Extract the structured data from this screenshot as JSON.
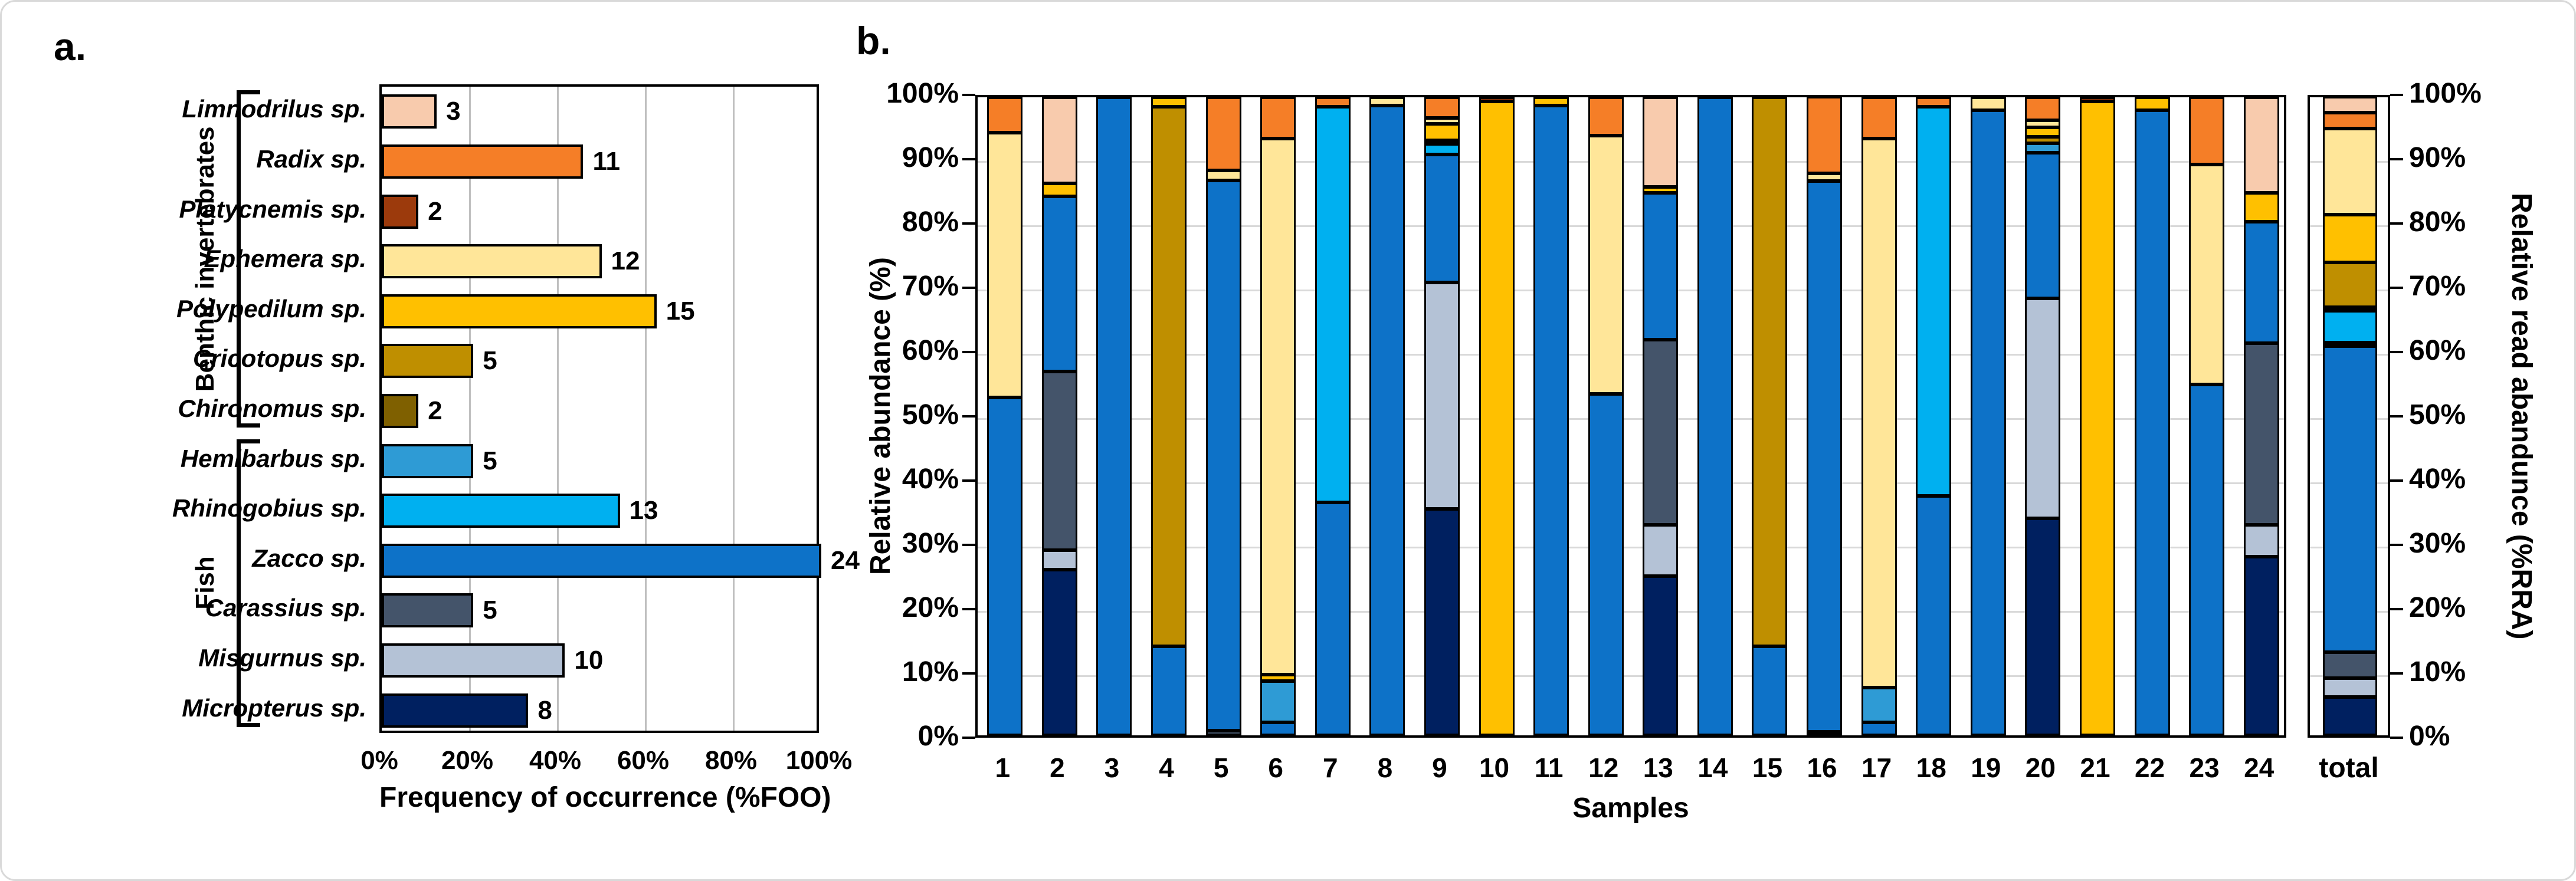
{
  "figure": {
    "panel_a_letter": "a.",
    "panel_b_letter": "b."
  },
  "species": [
    {
      "id": "limnodrilus",
      "label": "Limnodrilus sp.",
      "group": "Benthic invertebrates",
      "color": "#F8CBAD"
    },
    {
      "id": "radix",
      "label": "Radix sp.",
      "group": "Benthic invertebrates",
      "color": "#F57E27"
    },
    {
      "id": "platycnemis",
      "label": "Platycnemis sp.",
      "group": "Benthic invertebrates",
      "color": "#9C3A0C"
    },
    {
      "id": "ephemera",
      "label": "Ephemera sp.",
      "group": "Benthic invertebrates",
      "color": "#FFE699"
    },
    {
      "id": "polypedilum",
      "label": "Polypedilum sp.",
      "group": "Benthic invertebrates",
      "color": "#FFC000"
    },
    {
      "id": "cricotopus",
      "label": "Cricotopus sp.",
      "group": "Benthic invertebrates",
      "color": "#BF8F00"
    },
    {
      "id": "chironomus",
      "label": "Chironomus sp.",
      "group": "Benthic invertebrates",
      "color": "#7F6000"
    },
    {
      "id": "hemibarbus",
      "label": "Hemibarbus sp.",
      "group": "Fish",
      "color": "#2E9BD5"
    },
    {
      "id": "rhinogobius",
      "label": "Rhinogobius sp.",
      "group": "Fish",
      "color": "#00B0F0"
    },
    {
      "id": "zacco",
      "label": "Zacco sp.",
      "group": "Fish",
      "color": "#0D72C8"
    },
    {
      "id": "carassius",
      "label": "Carassius sp.",
      "group": "Fish",
      "color": "#44546A"
    },
    {
      "id": "misgurnus",
      "label": "Misgurnus sp.",
      "group": "Fish",
      "color": "#B4C2D6"
    },
    {
      "id": "micropterus",
      "label": "Micropterus sp.",
      "group": "Fish",
      "color": "#002060"
    }
  ],
  "chart_data": [
    {
      "type": "bar",
      "orientation": "horizontal",
      "xlabel": "Frequency of occurrence (%FOO)",
      "xticks": [
        "0%",
        "20%",
        "40%",
        "60%",
        "80%",
        "100%"
      ],
      "xlim": [
        0,
        100
      ],
      "scale_max_count": 24,
      "grid": true,
      "categories": [
        "Limnodrilus sp.",
        "Radix sp.",
        "Platycnemis sp.",
        "Ephemera sp.",
        "Polypedilum sp.",
        "Cricotopus sp.",
        "Chironomus sp.",
        "Hemibarbus sp.",
        "Rhinogobius sp.",
        "Zacco sp.",
        "Carassius sp.",
        "Misgurnus sp.",
        "Micropterus sp."
      ],
      "values": [
        3,
        11,
        2,
        12,
        15,
        5,
        2,
        5,
        13,
        24,
        5,
        10,
        8
      ],
      "colors": [
        "#F8CBAD",
        "#F57E27",
        "#9C3A0C",
        "#FFE699",
        "#FFC000",
        "#BF8F00",
        "#7F6000",
        "#2E9BD5",
        "#00B0F0",
        "#0D72C8",
        "#44546A",
        "#B4C2D6",
        "#002060"
      ],
      "groups": [
        {
          "label": "Benthic invertebrates",
          "from": 0,
          "to": 6
        },
        {
          "label": "Fish",
          "from": 7,
          "to": 12
        }
      ]
    },
    {
      "type": "stacked-bar",
      "xlabel": "Samples",
      "ylabel": "Relative abundance (%)",
      "ylabel_right": "Relative read abandunce (%RRA)",
      "total_label": "total",
      "ylim": [
        0,
        100
      ],
      "yticks": [
        "0%",
        "10%",
        "20%",
        "30%",
        "40%",
        "50%",
        "60%",
        "70%",
        "80%",
        "90%",
        "100%"
      ],
      "grid": true,
      "grid_color": "#d9d9d9",
      "stack_order": [
        "micropterus",
        "misgurnus",
        "carassius",
        "zacco",
        "hemibarbus",
        "rhinogobius",
        "chironomus",
        "cricotopus",
        "polypedilum",
        "ephemera",
        "platycnemis",
        "radix",
        "limnodrilus"
      ],
      "categories": [
        "1",
        "2",
        "3",
        "4",
        "5",
        "6",
        "7",
        "8",
        "9",
        "10",
        "11",
        "12",
        "13",
        "14",
        "15",
        "16",
        "17",
        "18",
        "19",
        "20",
        "21",
        "22",
        "23",
        "24"
      ],
      "samples": [
        {
          "label": "1",
          "segments": {
            "zacco": 53,
            "ephemera": 41.5,
            "radix": 5.5
          }
        },
        {
          "label": "2",
          "segments": {
            "micropterus": 26,
            "misgurnus": 3,
            "carassius": 28,
            "zacco": 27.5,
            "polypedilum": 2,
            "limnodrilus": 13.5
          }
        },
        {
          "label": "3",
          "segments": {
            "zacco": 100
          }
        },
        {
          "label": "4",
          "segments": {
            "zacco": 14,
            "cricotopus": 84.5,
            "polypedilum": 1.5
          }
        },
        {
          "label": "5",
          "segments": {
            "carassius": 0.7,
            "zacco": 86.3,
            "ephemera": 1.5,
            "radix": 11.5
          }
        },
        {
          "label": "6",
          "segments": {
            "zacco": 2,
            "hemibarbus": 6.5,
            "polypedilum": 1,
            "ephemera": 84,
            "radix": 6.5
          }
        },
        {
          "label": "7",
          "segments": {
            "zacco": 36.5,
            "rhinogobius": 62,
            "radix": 1.5
          }
        },
        {
          "label": "8",
          "segments": {
            "zacco": 98.7,
            "ephemera": 1.3
          }
        },
        {
          "label": "9",
          "segments": {
            "micropterus": 35.5,
            "misgurnus": 35.5,
            "zacco": 20,
            "rhinogobius": 1.7,
            "cricotopus": 0.6,
            "polypedilum": 2.5,
            "ephemera": 1,
            "radix": 3.2
          }
        },
        {
          "label": "10",
          "segments": {
            "polypedilum": 99.4,
            "platycnemis": 0.6
          }
        },
        {
          "label": "11",
          "segments": {
            "zacco": 98.7,
            "polypedilum": 1.3
          }
        },
        {
          "label": "12",
          "segments": {
            "zacco": 53.5,
            "ephemera": 40.5,
            "radix": 6
          }
        },
        {
          "label": "13",
          "segments": {
            "micropterus": 25,
            "misgurnus": 8,
            "carassius": 29,
            "zacco": 23,
            "polypedilum": 1,
            "limnodrilus": 14
          }
        },
        {
          "label": "14",
          "segments": {
            "zacco": 100
          }
        },
        {
          "label": "15",
          "segments": {
            "zacco": 14,
            "cricotopus": 86
          }
        },
        {
          "label": "16",
          "segments": {
            "micropterus": 0.5,
            "zacco": 86.3,
            "ephemera": 1.2,
            "radix": 12
          }
        },
        {
          "label": "17",
          "segments": {
            "zacco": 2,
            "hemibarbus": 5.5,
            "ephemera": 86,
            "radix": 6.5
          }
        },
        {
          "label": "18",
          "segments": {
            "zacco": 37.5,
            "rhinogobius": 61,
            "radix": 1.5
          }
        },
        {
          "label": "19",
          "segments": {
            "zacco": 98,
            "ephemera": 2
          }
        },
        {
          "label": "20",
          "segments": {
            "micropterus": 34,
            "misgurnus": 34.5,
            "zacco": 22.8,
            "hemibarbus": 1.5,
            "cricotopus": 1,
            "polypedilum": 1.5,
            "ephemera": 1.1,
            "radix": 3.6
          }
        },
        {
          "label": "21",
          "segments": {
            "polypedilum": 99.4,
            "platycnemis": 0.6
          }
        },
        {
          "label": "22",
          "segments": {
            "zacco": 98,
            "polypedilum": 2
          }
        },
        {
          "label": "23",
          "segments": {
            "zacco": 55,
            "ephemera": 34.5,
            "radix": 10.5
          }
        },
        {
          "label": "24",
          "segments": {
            "micropterus": 28,
            "misgurnus": 5,
            "carassius": 28.5,
            "zacco": 19,
            "polypedilum": 4.5,
            "limnodrilus": 15
          }
        }
      ],
      "total": {
        "label": "total",
        "segments": {
          "micropterus": 6,
          "misgurnus": 3,
          "carassius": 4,
          "zacco": 48,
          "hemibarbus": 0.5,
          "rhinogobius": 5,
          "chironomus": 0.5,
          "cricotopus": 7,
          "polypedilum": 7.5,
          "ephemera": 13.5,
          "radix": 2.5,
          "limnodrilus": 2.5
        }
      }
    }
  ]
}
